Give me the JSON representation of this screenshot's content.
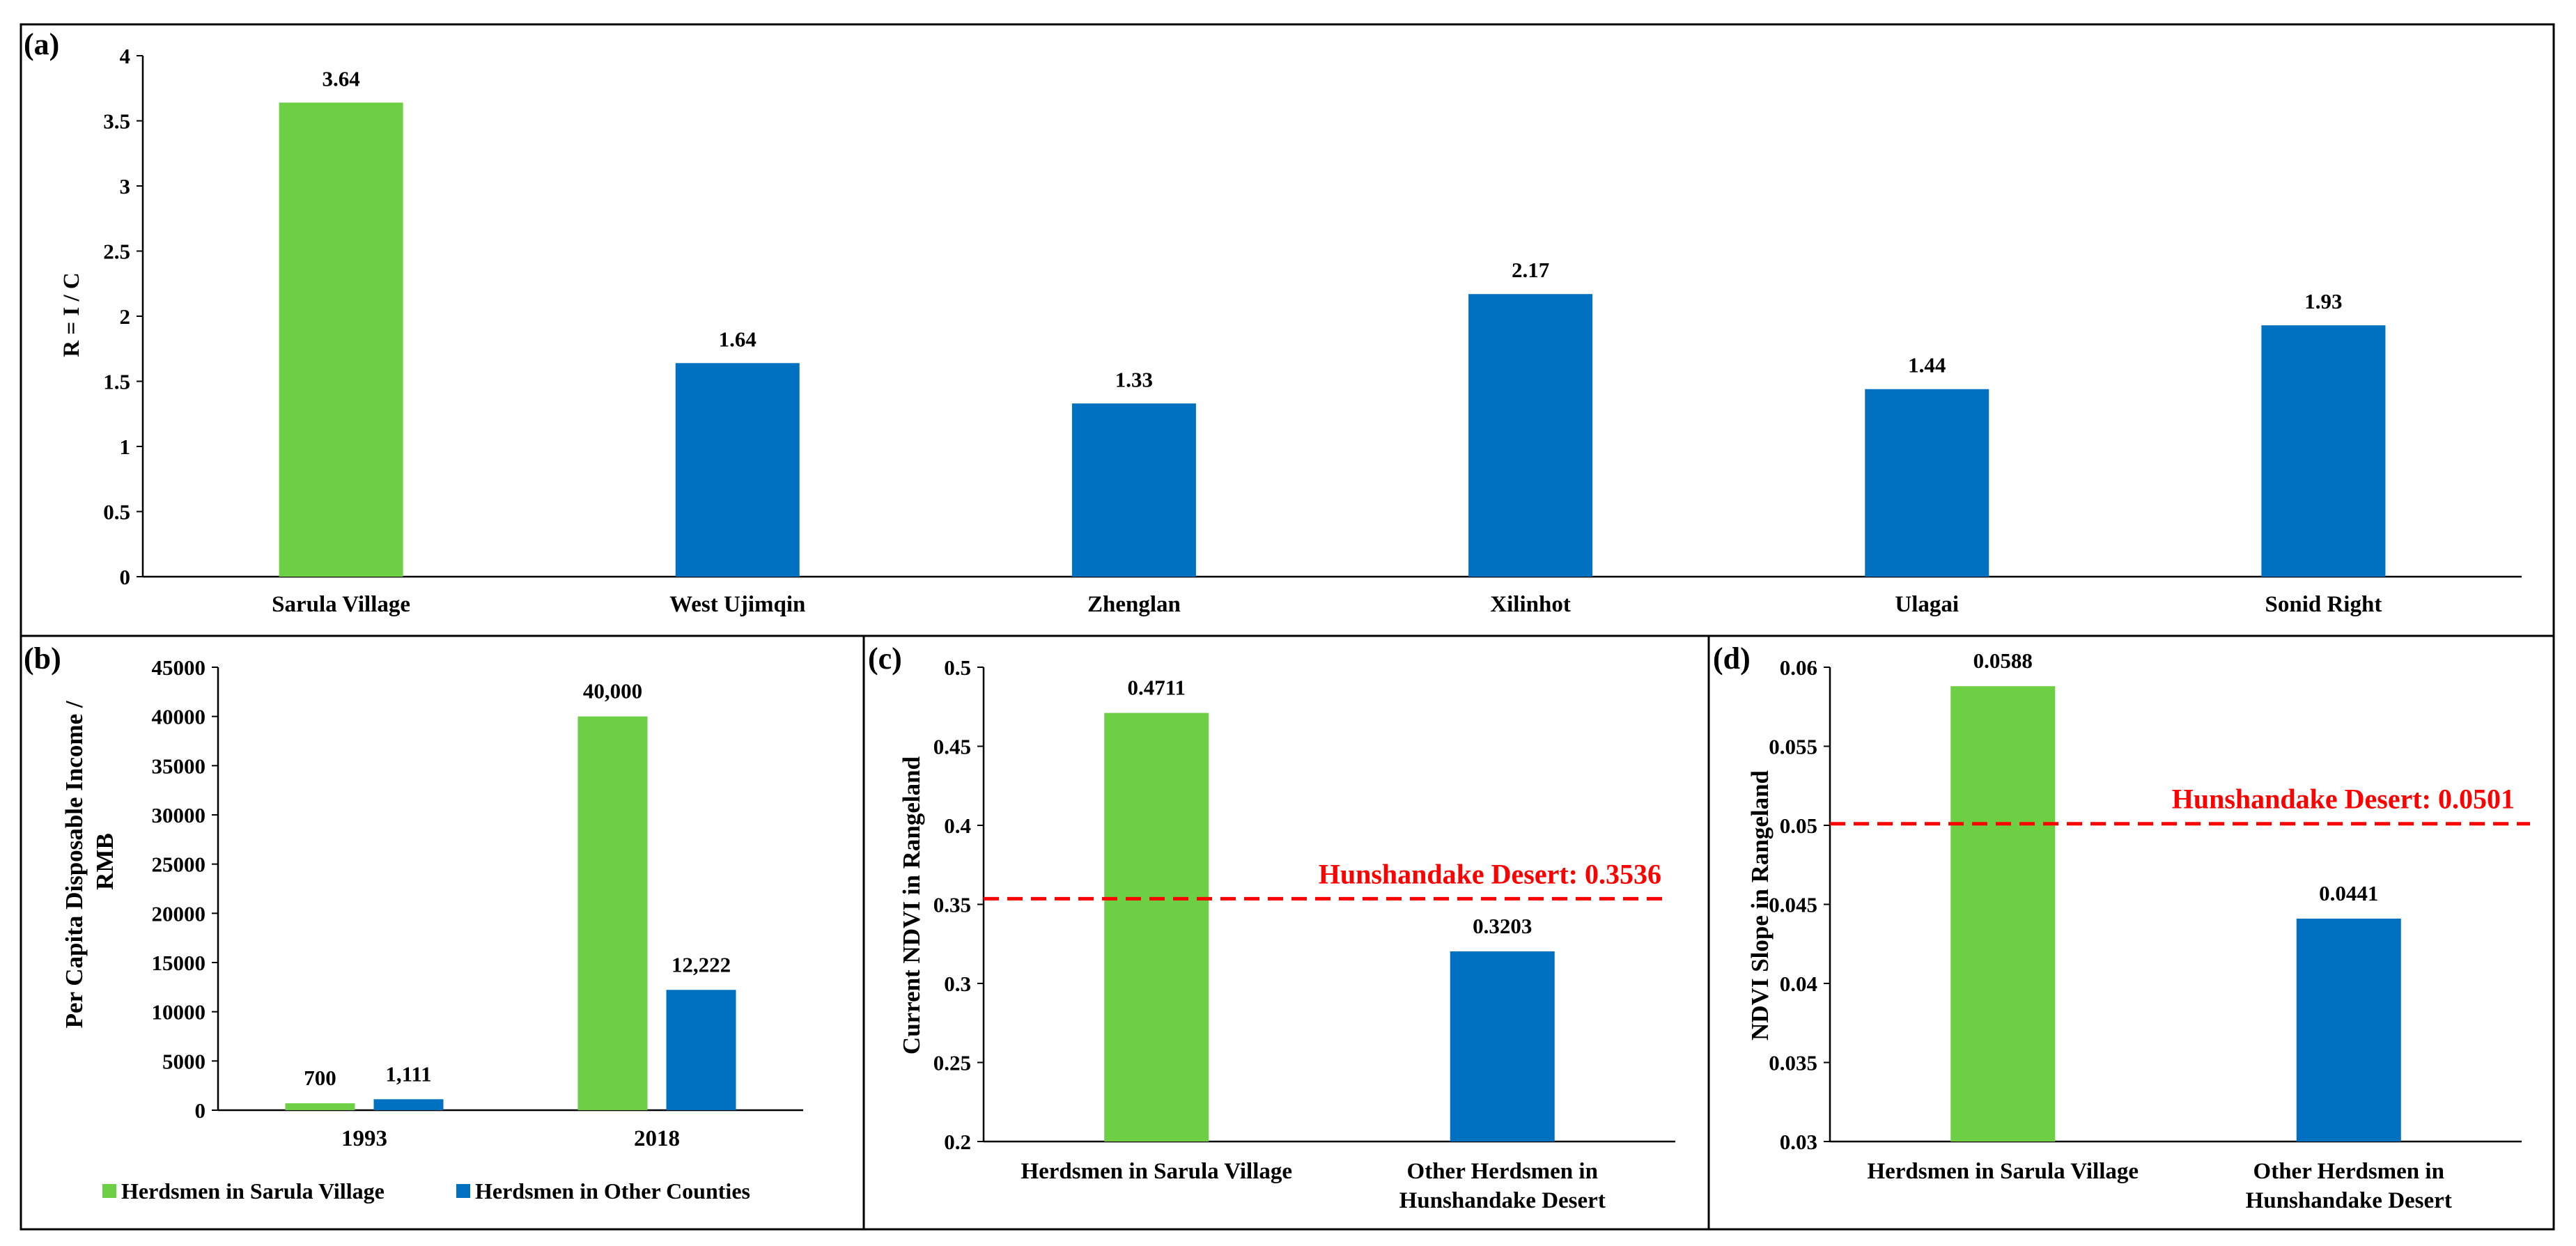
{
  "colors": {
    "green": "#6dcf43",
    "blue": "#0070c0",
    "ref_line": "#ff0000",
    "axis": "#000000"
  },
  "chart_data": [
    {
      "panel": "(a)",
      "type": "bar",
      "categories": [
        "Sarula Village",
        "West Ujimqin",
        "Zhenglan",
        "Xilinhot",
        "Ulagai",
        "Sonid Right"
      ],
      "values": [
        3.64,
        1.64,
        1.33,
        2.17,
        1.44,
        1.93
      ],
      "data_labels": [
        "3.64",
        "1.64",
        "1.33",
        "2.17",
        "1.44",
        "1.93"
      ],
      "bar_colors": [
        "green",
        "blue",
        "blue",
        "blue",
        "blue",
        "blue"
      ],
      "ylabel": "R = I / C",
      "ylim": [
        0,
        4
      ],
      "yticks": [
        "0",
        "0.5",
        "1",
        "1.5",
        "2",
        "2.5",
        "3",
        "3.5",
        "4"
      ]
    },
    {
      "panel": "(b)",
      "type": "bar",
      "categories": [
        "1993",
        "2018"
      ],
      "series": [
        {
          "name": "Herdsmen in Sarula Village",
          "color": "green",
          "values": [
            700,
            40000
          ],
          "data_labels": [
            "700",
            "40,000"
          ]
        },
        {
          "name": "Herdsmen in Other Counties",
          "color": "blue",
          "values": [
            1111,
            12222
          ],
          "data_labels": [
            "1,111",
            "12,222"
          ]
        }
      ],
      "ylabel_lines": [
        "Per Capita Disposable Income /",
        "RMB"
      ],
      "ylim": [
        0,
        45000
      ],
      "yticks": [
        "0",
        "5000",
        "10000",
        "15000",
        "20000",
        "25000",
        "30000",
        "35000",
        "40000",
        "45000"
      ],
      "legend_position": "bottom"
    },
    {
      "panel": "(c)",
      "type": "bar",
      "categories": [
        [
          "Herdsmen in Sarula Village"
        ],
        [
          "Other Herdsmen in",
          "Hunshandake Desert"
        ]
      ],
      "values": [
        0.4711,
        0.3203
      ],
      "data_labels": [
        "0.4711",
        "0.3203"
      ],
      "bar_colors": [
        "green",
        "blue"
      ],
      "ylabel": "Current NDVI in Rangeland",
      "ylim": [
        0.2,
        0.5
      ],
      "yticks": [
        "0.2",
        "0.25",
        "0.3",
        "0.35",
        "0.4",
        "0.45",
        "0.5"
      ],
      "reference_line": {
        "value": 0.3536,
        "label": "Hunshandake Desert: 0.3536"
      }
    },
    {
      "panel": "(d)",
      "type": "bar",
      "categories": [
        [
          "Herdsmen in Sarula Village"
        ],
        [
          "Other Herdsmen in",
          "Hunshandake Desert"
        ]
      ],
      "values": [
        0.0588,
        0.0441
      ],
      "data_labels": [
        "0.0588",
        "0.0441"
      ],
      "bar_colors": [
        "green",
        "blue"
      ],
      "ylabel": "NDVI Slope in Rangeland",
      "ylim": [
        0.03,
        0.06
      ],
      "yticks": [
        "0.03",
        "0.035",
        "0.04",
        "0.045",
        "0.05",
        "0.055",
        "0.06"
      ],
      "reference_line": {
        "value": 0.0501,
        "label": "Hunshandake Desert: 0.0501"
      }
    }
  ]
}
